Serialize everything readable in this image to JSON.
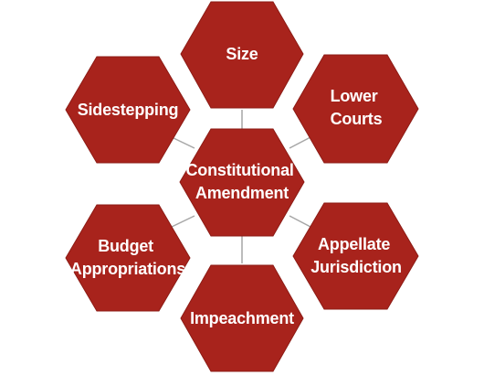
{
  "diagram": {
    "center": {
      "lines": [
        "Constitutional",
        "Amendment"
      ]
    },
    "nodes": [
      {
        "id": "size",
        "lines": [
          "Size"
        ]
      },
      {
        "id": "lower-courts",
        "lines": [
          "Lower",
          "Courts"
        ]
      },
      {
        "id": "appellate-jurisdiction",
        "lines": [
          "Appellate",
          "Jurisdiction"
        ]
      },
      {
        "id": "impeachment",
        "lines": [
          "Impeachment"
        ]
      },
      {
        "id": "budget-appropriations",
        "lines": [
          "Budget",
          "Appropriations"
        ]
      },
      {
        "id": "sidestepping",
        "lines": [
          "Sidestepping"
        ]
      }
    ]
  },
  "colors": {
    "hex_fill": "#a8231c",
    "hex_stroke": "#8c1b15",
    "text": "#ffffff",
    "connector": "#a6a6a6"
  }
}
